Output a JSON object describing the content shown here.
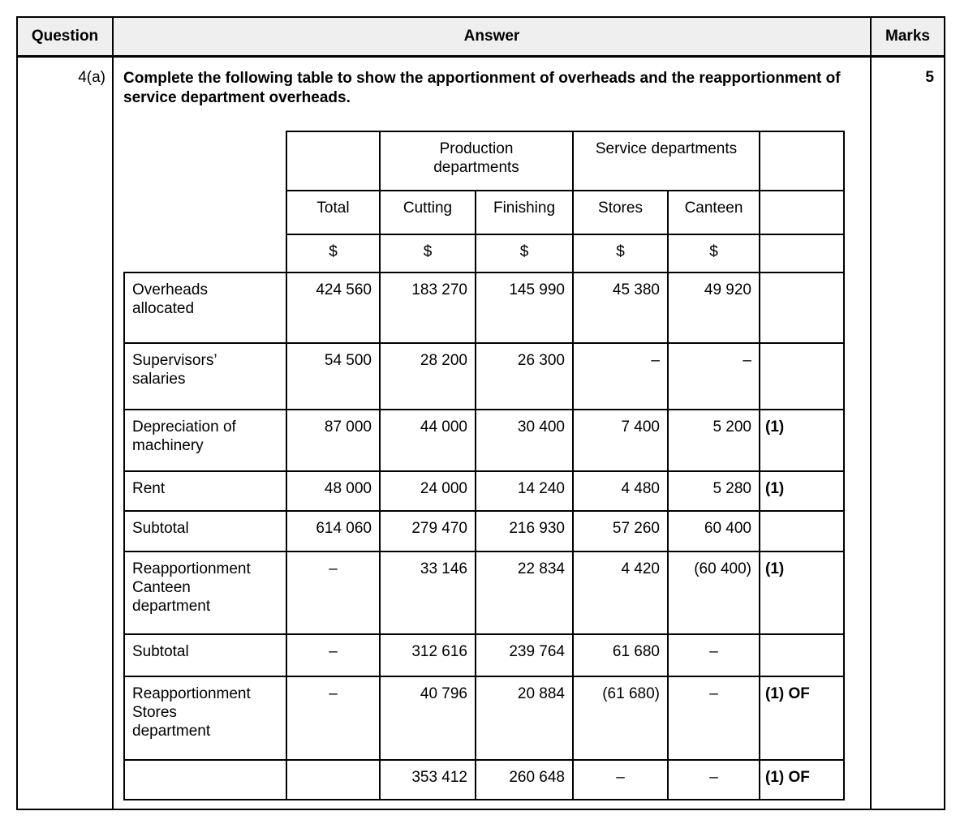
{
  "document": {
    "header": {
      "question_label": "Question",
      "answer_label": "Answer",
      "marks_label": "Marks"
    },
    "question_number": "4(a)",
    "marks_value": "5",
    "instruction": "Complete the following table to show the apportionment of overheads and the reapportionment of service department overheads."
  },
  "colors": {
    "header_bg": "#efefef",
    "border": "#000000",
    "text": "#000000"
  },
  "inner_table": {
    "group_header_row": [
      {
        "text": "",
        "span": 1
      },
      {
        "text": "Production\ndepartments",
        "span": 2
      },
      {
        "text": "Service departments",
        "span": 2
      },
      {
        "text": "",
        "span": 1
      }
    ],
    "column_header_row": [
      "Total",
      "Cutting",
      "Finishing",
      "Stores",
      "Canteen",
      ""
    ],
    "unit_row": [
      "$",
      "$",
      "$",
      "$",
      "$",
      ""
    ],
    "rows": [
      {
        "label": "Overheads\nallocated",
        "cells": [
          "424 560",
          "183 270",
          "145 990",
          "45 380",
          "49 920",
          ""
        ]
      },
      {
        "label": "Supervisors’\nsalaries",
        "cells": [
          "54 500",
          "28 200",
          "26 300",
          "–",
          "–",
          ""
        ]
      },
      {
        "label": "Depreciation of\nmachinery",
        "cells": [
          "87 000",
          "44 000",
          "30 400",
          "7 400",
          "5 200",
          "(1)"
        ]
      },
      {
        "label": "Rent",
        "cells": [
          "48 000",
          "24 000",
          "14 240",
          "4 480",
          "5 280",
          "(1)"
        ]
      },
      {
        "label": "Subtotal",
        "cells": [
          "614 060",
          "279 470",
          "216 930",
          "57 260",
          "60 400",
          ""
        ]
      },
      {
        "label": "Reapportionment\nCanteen\ndepartment",
        "cells": [
          {
            "text": "–",
            "align": "center"
          },
          "33 146",
          "22 834",
          "4 420",
          "(60 400)",
          "(1)"
        ]
      },
      {
        "label": "Subtotal",
        "cells": [
          {
            "text": "–",
            "align": "center"
          },
          "312 616",
          "239 764",
          "61 680",
          {
            "text": "–",
            "align": "center"
          },
          ""
        ]
      },
      {
        "label": "Reapportionment\nStores\ndepartment",
        "cells": [
          {
            "text": "–",
            "align": "center"
          },
          "40 796",
          "20 884",
          "(61 680)",
          {
            "text": "–",
            "align": "center"
          },
          "(1) OF"
        ]
      },
      {
        "label": "",
        "cells": [
          "",
          "353 412",
          "260 648",
          {
            "text": "–",
            "align": "center"
          },
          {
            "text": "–",
            "align": "center"
          },
          "(1) OF"
        ]
      }
    ]
  }
}
